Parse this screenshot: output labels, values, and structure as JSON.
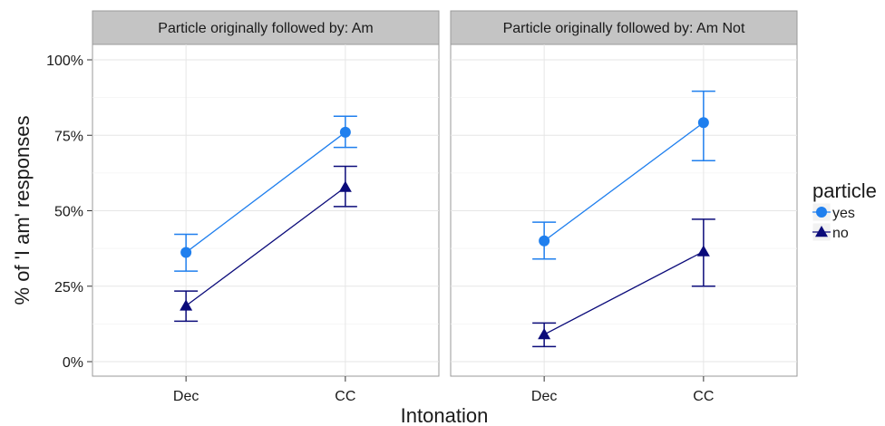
{
  "chart_data": {
    "type": "line",
    "ylabel": "% of 'I am' responses",
    "xlabel": "Intonation",
    "categories": [
      "Dec",
      "CC"
    ],
    "ylim": [
      0,
      100
    ],
    "yticks": [
      0,
      25,
      50,
      75,
      100
    ],
    "ytick_labels": [
      "0%",
      "25%",
      "50%",
      "75%",
      "100%"
    ],
    "grid": true,
    "legend": {
      "title": "particle",
      "position": "right",
      "entries": [
        {
          "label": "yes",
          "color": "#1f7fee",
          "marker": "circle"
        },
        {
          "label": "no",
          "color": "#0b0b7a",
          "marker": "triangle"
        }
      ]
    },
    "panels": [
      {
        "title": "Particle originally followed by: Am",
        "series": [
          {
            "name": "yes",
            "color": "#1f7fee",
            "marker": "circle",
            "values": [
              36.2,
              76.0
            ],
            "lower": [
              30.0,
              71.0
            ],
            "upper": [
              42.2,
              81.3
            ]
          },
          {
            "name": "no",
            "color": "#0b0b7a",
            "marker": "triangle",
            "values": [
              18.5,
              57.8
            ],
            "lower": [
              13.4,
              51.4
            ],
            "upper": [
              23.4,
              64.7
            ]
          }
        ]
      },
      {
        "title": "Particle originally followed by: Am Not",
        "series": [
          {
            "name": "yes",
            "color": "#1f7fee",
            "marker": "circle",
            "values": [
              40.0,
              79.2
            ],
            "lower": [
              34.0,
              66.6
            ],
            "upper": [
              46.2,
              89.6
            ]
          },
          {
            "name": "no",
            "color": "#0b0b7a",
            "marker": "triangle",
            "values": [
              9.0,
              36.5
            ],
            "lower": [
              5.0,
              25.0
            ],
            "upper": [
              12.8,
              47.2
            ]
          }
        ]
      }
    ]
  }
}
